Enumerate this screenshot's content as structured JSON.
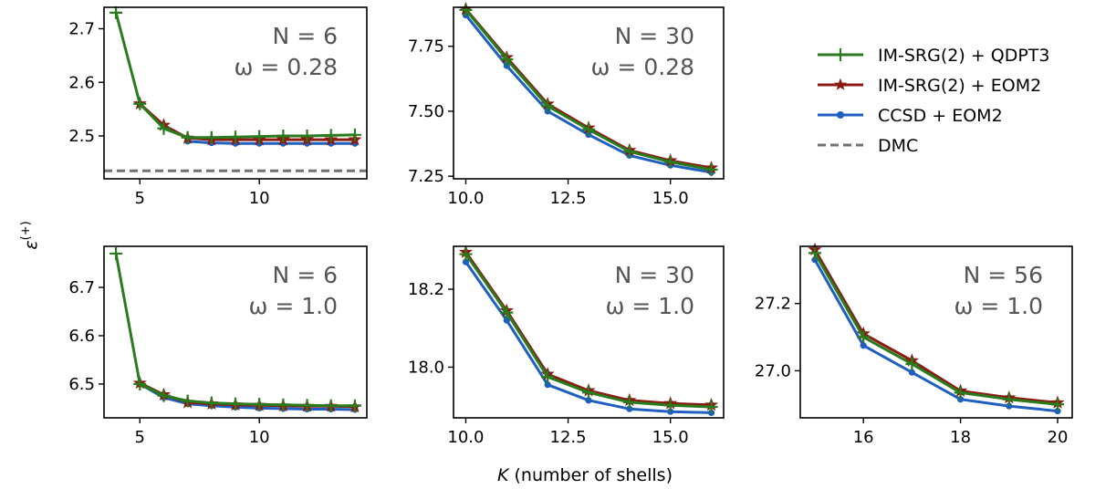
{
  "figure": {
    "xlabel_var": "K",
    "xlabel_rest": " (number of shells)",
    "ylabel_sym": "ε",
    "ylabel_sup": "(+)"
  },
  "legend": [
    {
      "label": "IM-SRG(2) + QDPT3",
      "color": "#2a7a1e",
      "marker": "plus",
      "style": "solid"
    },
    {
      "label": "IM-SRG(2) + EOM2",
      "color": "#8b1a10",
      "marker": "star",
      "style": "solid"
    },
    {
      "label": "CCSD + EOM2",
      "color": "#1f5fbf",
      "marker": "circle",
      "style": "solid"
    },
    {
      "label": "DMC",
      "color": "#707070",
      "marker": "none",
      "style": "dashed"
    }
  ],
  "chart_data": [
    {
      "type": "line",
      "panel": "top-left",
      "annotation": {
        "n": "N = 6",
        "w": "ω = 0.28"
      },
      "xlim": [
        3.5,
        14.5
      ],
      "ylim": [
        2.42,
        2.74
      ],
      "xticks": [
        5,
        10
      ],
      "yticks": [
        2.5,
        2.6,
        2.7
      ],
      "xtick_labels": [
        "5",
        "10"
      ],
      "ytick_labels": [
        "2.5",
        "2.6",
        "2.7"
      ],
      "x": [
        4,
        5,
        6,
        7,
        8,
        9,
        10,
        11,
        12,
        13,
        14
      ],
      "series": [
        {
          "name": "IM-SRG(2) + QDPT3",
          "values": [
            2.73,
            2.56,
            2.514,
            2.497,
            2.497,
            2.498,
            2.499,
            2.5,
            2.5,
            2.501,
            2.502
          ]
        },
        {
          "name": "IM-SRG(2) + EOM2",
          "values": [
            null,
            2.56,
            2.52,
            2.496,
            2.493,
            2.493,
            2.493,
            2.493,
            2.493,
            2.493,
            2.493
          ]
        },
        {
          "name": "CCSD + EOM2",
          "values": [
            null,
            null,
            null,
            2.49,
            2.487,
            2.486,
            2.486,
            2.486,
            2.486,
            2.486,
            2.486
          ]
        }
      ],
      "dmc": 2.435
    },
    {
      "type": "line",
      "panel": "top-middle",
      "annotation": {
        "n": "N = 30",
        "w": "ω = 0.28"
      },
      "xlim": [
        9.7,
        16.3
      ],
      "ylim": [
        7.24,
        7.9
      ],
      "xticks": [
        10,
        12.5,
        15
      ],
      "yticks": [
        7.25,
        7.5,
        7.75
      ],
      "xtick_labels": [
        "10.0",
        "12.5",
        "15.0"
      ],
      "ytick_labels": [
        "7.25",
        "7.50",
        "7.75"
      ],
      "x": [
        10,
        11,
        12,
        13,
        14,
        15,
        16
      ],
      "series": [
        {
          "name": "IM-SRG(2) + QDPT3",
          "values": [
            7.89,
            7.7,
            7.52,
            7.43,
            7.345,
            7.305,
            7.275
          ]
        },
        {
          "name": "IM-SRG(2) + EOM2",
          "values": [
            7.893,
            7.707,
            7.528,
            7.436,
            7.35,
            7.31,
            7.282
          ]
        },
        {
          "name": "CCSD + EOM2",
          "values": [
            7.87,
            7.675,
            7.5,
            7.41,
            7.33,
            7.292,
            7.265
          ]
        }
      ],
      "dmc": null
    },
    {
      "type": "line",
      "panel": "bottom-left",
      "annotation": {
        "n": "N = 6",
        "w": "ω = 1.0"
      },
      "xlim": [
        3.5,
        14.5
      ],
      "ylim": [
        6.43,
        6.785
      ],
      "xticks": [
        5,
        10
      ],
      "yticks": [
        6.5,
        6.6,
        6.7
      ],
      "xtick_labels": [
        "5",
        "10"
      ],
      "ytick_labels": [
        "6.5",
        "6.6",
        "6.7"
      ],
      "x": [
        4,
        5,
        6,
        7,
        8,
        9,
        10,
        11,
        12,
        13,
        14
      ],
      "series": [
        {
          "name": "IM-SRG(2) + QDPT3",
          "values": [
            6.77,
            6.5,
            6.476,
            6.465,
            6.461,
            6.459,
            6.458,
            6.457,
            6.456,
            6.455,
            6.455
          ]
        },
        {
          "name": "IM-SRG(2) + EOM2",
          "values": [
            null,
            6.502,
            6.478,
            6.462,
            6.459,
            6.457,
            6.456,
            6.455,
            6.454,
            6.454,
            6.453
          ]
        },
        {
          "name": "CCSD + EOM2",
          "values": [
            null,
            6.5,
            6.472,
            6.459,
            6.455,
            6.452,
            6.45,
            6.449,
            6.448,
            6.448,
            6.447
          ]
        }
      ],
      "dmc": null
    },
    {
      "type": "line",
      "panel": "bottom-middle",
      "annotation": {
        "n": "N = 30",
        "w": "ω = 1.0"
      },
      "xlim": [
        9.7,
        16.3
      ],
      "ylim": [
        17.87,
        18.31
      ],
      "xticks": [
        10,
        12.5,
        15
      ],
      "yticks": [
        18.0,
        18.2
      ],
      "xtick_labels": [
        "10.0",
        "12.5",
        "15.0"
      ],
      "ytick_labels": [
        "18.0",
        "18.2"
      ],
      "x": [
        10,
        11,
        12,
        13,
        14,
        15,
        16
      ],
      "series": [
        {
          "name": "IM-SRG(2) + QDPT3",
          "values": [
            18.29,
            18.14,
            17.975,
            17.935,
            17.91,
            17.902,
            17.898
          ]
        },
        {
          "name": "IM-SRG(2) + EOM2",
          "values": [
            18.295,
            18.145,
            17.982,
            17.94,
            17.915,
            17.907,
            17.903
          ]
        },
        {
          "name": "CCSD + EOM2",
          "values": [
            18.27,
            18.12,
            17.955,
            17.915,
            17.893,
            17.886,
            17.883
          ]
        }
      ],
      "dmc": null
    },
    {
      "type": "line",
      "panel": "bottom-right",
      "annotation": {
        "n": "N = 56",
        "w": "ω = 1.0"
      },
      "xlim": [
        14.7,
        20.3
      ],
      "ylim": [
        26.86,
        27.37
      ],
      "xticks": [
        16,
        18,
        20
      ],
      "yticks": [
        27.0,
        27.2
      ],
      "xtick_labels": [
        "16",
        "18",
        "20"
      ],
      "ytick_labels": [
        "27.0",
        "27.2"
      ],
      "x": [
        15,
        16,
        17,
        18,
        19,
        20
      ],
      "series": [
        {
          "name": "IM-SRG(2) + QDPT3",
          "values": [
            27.35,
            27.1,
            27.02,
            26.935,
            26.915,
            26.9
          ]
        },
        {
          "name": "IM-SRG(2) + EOM2",
          "values": [
            27.36,
            27.11,
            27.03,
            26.94,
            26.92,
            26.905
          ]
        },
        {
          "name": "CCSD + EOM2",
          "values": [
            27.33,
            27.075,
            26.995,
            26.915,
            26.895,
            26.88
          ]
        }
      ],
      "dmc": null
    }
  ]
}
